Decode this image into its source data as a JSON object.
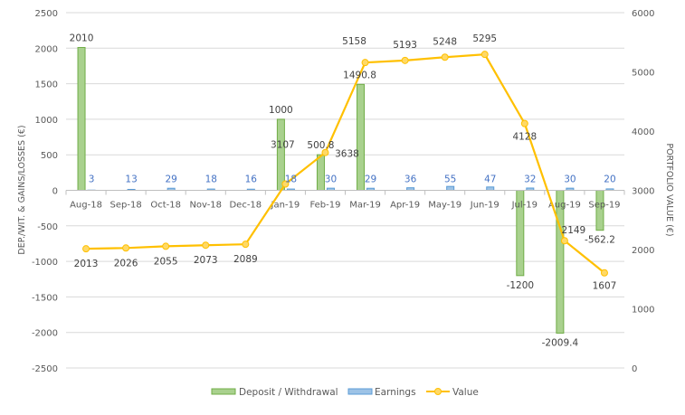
{
  "chart_data": {
    "type": "bar",
    "categories": [
      "Aug-18",
      "Sep-18",
      "Oct-18",
      "Nov-18",
      "Dec-18",
      "Jan-19",
      "Feb-19",
      "Mar-19",
      "Apr-19",
      "May-19",
      "Jun-19",
      "Jul-19",
      "Aug-19",
      "Sep-19"
    ],
    "series": [
      {
        "name": "Deposit / Withdrawal",
        "type": "bar",
        "axis": "left",
        "color": "#A9D18E",
        "border": "#70AD47",
        "values": [
          2010,
          0,
          0,
          0,
          0,
          1000,
          500.8,
          1490.8,
          0,
          0,
          0,
          -1200,
          -2009.4,
          -562.2
        ],
        "labels": [
          "2010",
          "",
          "",
          "",
          "",
          "1000",
          "500.8",
          "1490.8",
          "",
          "",
          "",
          "-1200",
          "-2009.4",
          "-562.2"
        ]
      },
      {
        "name": "Earnings",
        "type": "bar",
        "axis": "left",
        "color": "#9DC3E6",
        "border": "#5B9BD5",
        "values": [
          3,
          13,
          29,
          18,
          16,
          18,
          30,
          29,
          36,
          55,
          47,
          32,
          30,
          20
        ],
        "labels": [
          "3",
          "13",
          "29",
          "18",
          "16",
          "18",
          "30",
          "29",
          "36",
          "55",
          "47",
          "32",
          "30",
          "20"
        ]
      },
      {
        "name": "Value",
        "type": "line",
        "axis": "right",
        "color": "#FFC000",
        "values": [
          2013,
          2026,
          2055,
          2073,
          2089,
          3107,
          3638,
          5158,
          5193,
          5248,
          5295,
          4128,
          2149,
          1607
        ],
        "labels": [
          "2013",
          "2026",
          "2055",
          "2073",
          "2089",
          "3107",
          "3638",
          "5158",
          "5193",
          "5248",
          "5295",
          "4128",
          "2149",
          "1607"
        ]
      }
    ],
    "ylabel": "DEP./WIT. & GAINS/LOSSES (€)",
    "y2label": "PORTFOLIO VALUE (€)",
    "ylim": [
      -2500,
      2500
    ],
    "y2lim": [
      0,
      6000
    ],
    "yticks": [
      "-2500",
      "-2000",
      "-1500",
      "-1000",
      "-500",
      "0",
      "500",
      "1000",
      "1500",
      "2000",
      "2500"
    ],
    "y2ticks": [
      "0",
      "1000",
      "2000",
      "3000",
      "4000",
      "5000",
      "6000"
    ],
    "grid": true,
    "legend": "bottom"
  }
}
